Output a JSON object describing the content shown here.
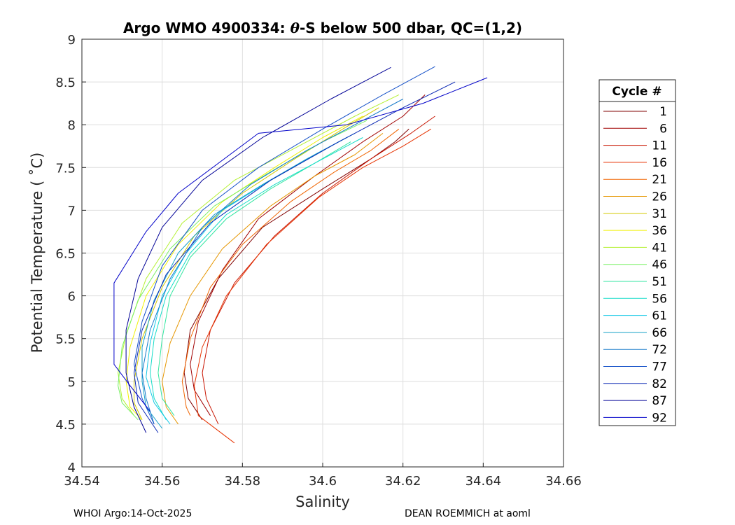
{
  "chart_data": {
    "type": "line",
    "title_prefix": "Argo WMO 4900334: ",
    "title_theta": "θ",
    "title_suffix": "-S below 500 dbar,  QC=(1,2)",
    "xlabel": "Salinity",
    "ylabel": "Potential Temperature ( ˚C)",
    "xlim": [
      34.54,
      34.66
    ],
    "ylim": [
      4,
      9
    ],
    "xticks": [
      "34.54",
      "34.56",
      "34.58",
      "34.6",
      "34.62",
      "34.64",
      "34.66"
    ],
    "yticks": [
      "4",
      "4.5",
      "5",
      "5.5",
      "6",
      "6.5",
      "7",
      "7.5",
      "8",
      "8.5",
      "9"
    ],
    "grid": true,
    "legend": {
      "title": "Cycle #",
      "placement": "outside-right",
      "entries": [
        {
          "label": "1",
          "color": "#800000"
        },
        {
          "label": "6",
          "color": "#a00000"
        },
        {
          "label": "11",
          "color": "#c81400"
        },
        {
          "label": "16",
          "color": "#e63200"
        },
        {
          "label": "21",
          "color": "#f06400"
        },
        {
          "label": "26",
          "color": "#e69600"
        },
        {
          "label": "31",
          "color": "#d2c800"
        },
        {
          "label": "36",
          "color": "#f0f000"
        },
        {
          "label": "41",
          "color": "#b4f032"
        },
        {
          "label": "46",
          "color": "#78f064"
        },
        {
          "label": "51",
          "color": "#32e6a0"
        },
        {
          "label": "56",
          "color": "#14dcc8"
        },
        {
          "label": "61",
          "color": "#14c8e6"
        },
        {
          "label": "66",
          "color": "#14a0c8"
        },
        {
          "label": "72",
          "color": "#1478c8"
        },
        {
          "label": "77",
          "color": "#1450c8"
        },
        {
          "label": "82",
          "color": "#0a28b4"
        },
        {
          "label": "87",
          "color": "#000096"
        },
        {
          "label": "92",
          "color": "#0000c8"
        }
      ]
    },
    "series": [
      {
        "name": "1",
        "color": "#800000",
        "s": [
          34.6215,
          34.618,
          34.612,
          34.6,
          34.585,
          34.574,
          34.567,
          34.5655,
          34.5665,
          34.57
        ],
        "t": [
          7.95,
          7.8,
          7.6,
          7.25,
          6.8,
          6.2,
          5.6,
          5.1,
          4.8,
          4.55
        ]
      },
      {
        "name": "6",
        "color": "#a00000",
        "s": [
          34.6255,
          34.62,
          34.61,
          34.598,
          34.584,
          34.575,
          34.569,
          34.567,
          34.568,
          34.572
        ],
        "t": [
          8.35,
          8.1,
          7.8,
          7.4,
          6.9,
          6.3,
          5.7,
          5.2,
          4.9,
          4.6
        ]
      },
      {
        "name": "11",
        "color": "#c81400",
        "s": [
          34.628,
          34.622,
          34.612,
          34.6,
          34.588,
          34.578,
          34.572,
          34.57,
          34.571,
          34.574
        ],
        "t": [
          8.1,
          7.9,
          7.6,
          7.2,
          6.7,
          6.15,
          5.6,
          5.1,
          4.8,
          4.5
        ]
      },
      {
        "name": "16",
        "color": "#e63200",
        "s": [
          34.627,
          34.62,
          34.61,
          34.599,
          34.586,
          34.576,
          34.57,
          34.568,
          34.569,
          34.578
        ],
        "t": [
          7.95,
          7.75,
          7.5,
          7.15,
          6.6,
          6.0,
          5.4,
          4.95,
          4.6,
          4.28
        ]
      },
      {
        "name": "21",
        "color": "#f06400",
        "s": [
          34.619,
          34.612,
          34.603,
          34.592,
          34.58,
          34.572,
          34.567,
          34.565,
          34.566,
          34.567
        ],
        "t": [
          7.95,
          7.7,
          7.45,
          7.1,
          6.6,
          6.1,
          5.5,
          5.0,
          4.7,
          4.6
        ]
      },
      {
        "name": "26",
        "color": "#e69600",
        "s": [
          34.615,
          34.608,
          34.598,
          34.587,
          34.575,
          34.567,
          34.562,
          34.56,
          34.561,
          34.564
        ],
        "t": [
          7.9,
          7.65,
          7.4,
          7.05,
          6.55,
          6.0,
          5.45,
          5.0,
          4.7,
          4.5
        ]
      },
      {
        "name": "31",
        "color": "#d2c800",
        "s": [
          34.614,
          34.605,
          34.593,
          34.58,
          34.568,
          34.56,
          34.555,
          34.553,
          34.553,
          34.555
        ],
        "t": [
          8.2,
          7.95,
          7.6,
          7.2,
          6.7,
          6.1,
          5.5,
          5.0,
          4.75,
          4.55
        ]
      },
      {
        "name": "36",
        "color": "#f0f000",
        "s": [
          34.61,
          34.6,
          34.588,
          34.575,
          34.564,
          34.556,
          34.552,
          34.551,
          34.552,
          34.555
        ],
        "t": [
          8.1,
          7.85,
          7.5,
          7.1,
          6.6,
          6.0,
          5.4,
          5.0,
          4.7,
          4.55
        ]
      },
      {
        "name": "41",
        "color": "#b4f032",
        "s": [
          34.619,
          34.608,
          34.594,
          34.578,
          34.565,
          34.556,
          34.551,
          34.549,
          34.55,
          34.553
        ],
        "t": [
          8.35,
          8.1,
          7.75,
          7.35,
          6.85,
          6.2,
          5.55,
          5.1,
          4.8,
          4.6
        ]
      },
      {
        "name": "46",
        "color": "#78f064",
        "s": [
          34.611,
          34.6,
          34.587,
          34.573,
          34.562,
          34.554,
          34.55,
          34.549,
          34.55,
          34.554
        ],
        "t": [
          8.05,
          7.8,
          7.45,
          7.05,
          6.55,
          5.95,
          5.4,
          4.95,
          4.75,
          4.55
        ]
      },
      {
        "name": "51",
        "color": "#32e6a0",
        "s": [
          34.607,
          34.598,
          34.587,
          34.576,
          34.567,
          34.562,
          34.56,
          34.559,
          34.56,
          34.563
        ],
        "t": [
          7.8,
          7.55,
          7.25,
          6.9,
          6.45,
          6.0,
          5.5,
          5.1,
          4.8,
          4.6
        ]
      },
      {
        "name": "56",
        "color": "#14dcc8",
        "s": [
          34.61,
          34.6,
          34.588,
          34.576,
          34.567,
          34.561,
          34.558,
          34.557,
          34.558,
          34.561
        ],
        "t": [
          7.85,
          7.6,
          7.3,
          6.95,
          6.5,
          6.0,
          5.5,
          5.1,
          4.8,
          4.55
        ]
      },
      {
        "name": "61",
        "color": "#14c8e6",
        "s": [
          34.608,
          34.598,
          34.587,
          34.575,
          34.566,
          34.56,
          34.557,
          34.556,
          34.558,
          34.562
        ],
        "t": [
          7.9,
          7.65,
          7.35,
          7.0,
          6.5,
          6.0,
          5.45,
          5.05,
          4.75,
          4.5
        ]
      },
      {
        "name": "66",
        "color": "#14a0c8",
        "s": [
          34.606,
          34.596,
          34.585,
          34.573,
          34.564,
          34.558,
          34.555,
          34.555,
          34.556,
          34.56
        ],
        "t": [
          7.85,
          7.6,
          7.3,
          6.95,
          6.5,
          5.95,
          5.4,
          5.0,
          4.7,
          4.45
        ]
      },
      {
        "name": "72",
        "color": "#1478c8",
        "s": [
          34.62,
          34.61,
          34.596,
          34.582,
          34.57,
          34.562,
          34.557,
          34.555,
          34.556,
          34.558
        ],
        "t": [
          8.3,
          8.05,
          7.7,
          7.3,
          6.8,
          6.2,
          5.6,
          5.1,
          4.8,
          4.5
        ]
      },
      {
        "name": "77",
        "color": "#1450c8",
        "s": [
          34.628,
          34.615,
          34.6,
          34.584,
          34.57,
          34.56,
          34.555,
          34.553,
          34.555,
          34.558
        ],
        "t": [
          8.68,
          8.35,
          7.95,
          7.5,
          7.0,
          6.35,
          5.7,
          5.2,
          4.8,
          4.5
        ]
      },
      {
        "name": "82",
        "color": "#0a28b4",
        "s": [
          34.633,
          34.62,
          34.604,
          34.587,
          34.572,
          34.561,
          34.555,
          34.553,
          34.554,
          34.559
        ],
        "t": [
          8.5,
          8.2,
          7.8,
          7.35,
          6.85,
          6.25,
          5.6,
          5.1,
          4.75,
          4.4
        ]
      },
      {
        "name": "87",
        "color": "#000096",
        "s": [
          34.617,
          34.602,
          34.585,
          34.57,
          34.56,
          34.554,
          34.551,
          34.551,
          34.553,
          34.556
        ],
        "t": [
          8.67,
          8.3,
          7.85,
          7.35,
          6.8,
          6.2,
          5.6,
          5.1,
          4.7,
          4.4
        ]
      },
      {
        "name": "92",
        "color": "#0000c8",
        "s": [
          34.641,
          34.625,
          34.606,
          34.584,
          34.564,
          34.556,
          34.548,
          34.548,
          34.552,
          34.557
        ],
        "t": [
          8.55,
          8.25,
          8.0,
          7.9,
          7.2,
          6.75,
          6.15,
          5.2,
          4.95,
          4.65
        ]
      }
    ]
  },
  "footer": {
    "left": "WHOI Argo:14-Oct-2025",
    "right": "DEAN ROEMMICH at aoml"
  }
}
